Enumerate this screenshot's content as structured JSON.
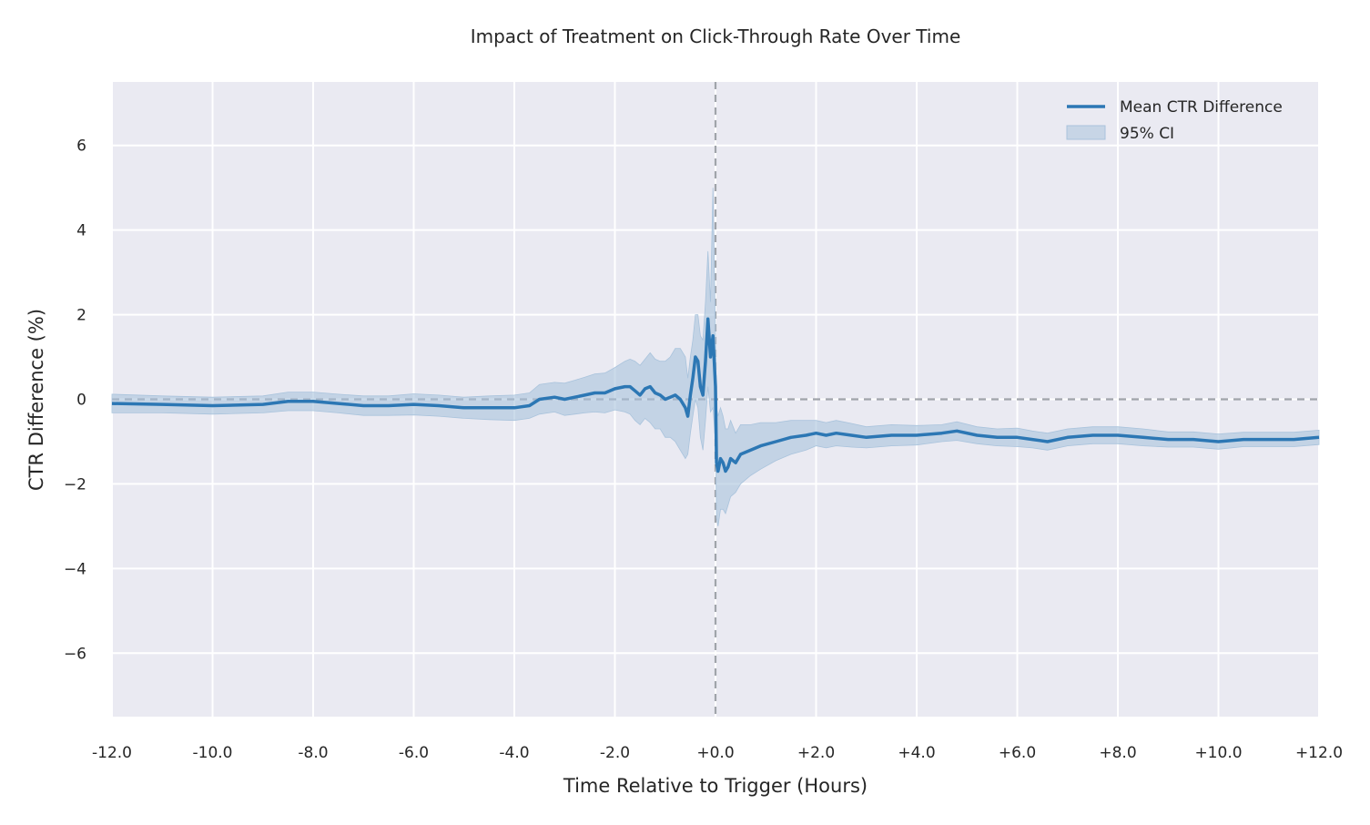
{
  "chart_data": {
    "type": "line",
    "title": "Impact of Treatment on Click-Through Rate Over Time",
    "xlabel": "Time Relative to Trigger (Hours)",
    "ylabel": "CTR Difference (%)",
    "xlim": [
      -12,
      12
    ],
    "ylim": [
      -7.5,
      7.5
    ],
    "x_ticks": [
      -12,
      -10,
      -8,
      -6,
      -4,
      -2,
      0,
      2,
      4,
      6,
      8,
      10,
      12
    ],
    "x_tick_labels": [
      "-12.0",
      "-10.0",
      "-8.0",
      "-6.0",
      "-4.0",
      "-2.0",
      "+0.0",
      "+2.0",
      "+4.0",
      "+6.0",
      "+8.0",
      "+10.0",
      "+12.0"
    ],
    "y_ticks": [
      -6,
      -4,
      -2,
      0,
      2,
      4,
      6
    ],
    "y_tick_labels": [
      "−6",
      "−4",
      "−2",
      "0",
      "2",
      "4",
      "6"
    ],
    "grid": true,
    "legend_position": "top-right",
    "reference_lines": [
      {
        "orientation": "horizontal",
        "value": 0,
        "style": "dashed",
        "color": "#a0a4aa"
      },
      {
        "orientation": "vertical",
        "value": 0,
        "style": "dashed",
        "color": "#a0a4aa"
      }
    ],
    "colors": {
      "line": "#2c77b4",
      "band": "#a9c3dc",
      "background": "#eaeaf2",
      "grid": "#ffffff"
    },
    "series": [
      {
        "name": "Mean CTR Difference",
        "x": [
          -12,
          -11,
          -10,
          -9,
          -8.5,
          -8,
          -7.5,
          -7,
          -6.5,
          -6,
          -5.5,
          -5,
          -4.5,
          -4,
          -3.7,
          -3.5,
          -3.2,
          -3,
          -2.8,
          -2.6,
          -2.4,
          -2.2,
          -2.0,
          -1.8,
          -1.7,
          -1.6,
          -1.5,
          -1.4,
          -1.3,
          -1.2,
          -1.1,
          -1.0,
          -0.9,
          -0.8,
          -0.7,
          -0.6,
          -0.55,
          -0.5,
          -0.45,
          -0.4,
          -0.35,
          -0.3,
          -0.25,
          -0.2,
          -0.15,
          -0.1,
          -0.05,
          0.0,
          0.02,
          0.05,
          0.1,
          0.15,
          0.2,
          0.25,
          0.3,
          0.4,
          0.5,
          0.7,
          0.9,
          1.2,
          1.5,
          1.8,
          2.0,
          2.2,
          2.4,
          2.7,
          3.0,
          3.5,
          4.0,
          4.5,
          4.8,
          5.2,
          5.6,
          6.0,
          6.3,
          6.6,
          7.0,
          7.5,
          8.0,
          8.5,
          9.0,
          9.5,
          10.0,
          10.5,
          11.0,
          11.5,
          12.0
        ],
        "y": [
          -0.1,
          -0.12,
          -0.15,
          -0.12,
          -0.05,
          -0.05,
          -0.1,
          -0.15,
          -0.15,
          -0.12,
          -0.15,
          -0.2,
          -0.2,
          -0.2,
          -0.15,
          0.0,
          0.05,
          0.0,
          0.05,
          0.1,
          0.15,
          0.15,
          0.25,
          0.3,
          0.3,
          0.2,
          0.1,
          0.25,
          0.3,
          0.15,
          0.1,
          0.0,
          0.05,
          0.1,
          0.0,
          -0.2,
          -0.4,
          0.1,
          0.5,
          1.0,
          0.9,
          0.3,
          0.1,
          0.9,
          1.9,
          1.0,
          1.5,
          0.3,
          -1.5,
          -1.7,
          -1.4,
          -1.5,
          -1.7,
          -1.6,
          -1.4,
          -1.5,
          -1.3,
          -1.2,
          -1.1,
          -1.0,
          -0.9,
          -0.85,
          -0.8,
          -0.85,
          -0.8,
          -0.85,
          -0.9,
          -0.85,
          -0.85,
          -0.8,
          -0.75,
          -0.85,
          -0.9,
          -0.9,
          -0.95,
          -1.0,
          -0.9,
          -0.85,
          -0.85,
          -0.9,
          -0.95,
          -0.95,
          -1.0,
          -0.95,
          -0.95,
          -0.95,
          -0.9
        ]
      },
      {
        "name": "95% CI",
        "x": [
          -12,
          -11,
          -10,
          -9,
          -8.5,
          -8,
          -7.5,
          -7,
          -6.5,
          -6,
          -5.5,
          -5,
          -4.5,
          -4,
          -3.7,
          -3.5,
          -3.2,
          -3,
          -2.8,
          -2.6,
          -2.4,
          -2.2,
          -2.0,
          -1.8,
          -1.7,
          -1.6,
          -1.5,
          -1.4,
          -1.3,
          -1.2,
          -1.1,
          -1.0,
          -0.9,
          -0.8,
          -0.7,
          -0.6,
          -0.55,
          -0.5,
          -0.45,
          -0.4,
          -0.35,
          -0.3,
          -0.25,
          -0.2,
          -0.15,
          -0.1,
          -0.05,
          0.0,
          0.02,
          0.05,
          0.1,
          0.15,
          0.2,
          0.25,
          0.3,
          0.4,
          0.5,
          0.7,
          0.9,
          1.2,
          1.5,
          1.8,
          2.0,
          2.2,
          2.4,
          2.7,
          3.0,
          3.5,
          4.0,
          4.5,
          4.8,
          5.2,
          5.6,
          6.0,
          6.3,
          6.6,
          7.0,
          7.5,
          8.0,
          8.5,
          9.0,
          9.5,
          10.0,
          10.5,
          11.0,
          11.5,
          12.0
        ],
        "lower": [
          -0.32,
          -0.32,
          -0.35,
          -0.32,
          -0.27,
          -0.27,
          -0.32,
          -0.38,
          -0.38,
          -0.37,
          -0.4,
          -0.45,
          -0.48,
          -0.5,
          -0.45,
          -0.35,
          -0.3,
          -0.38,
          -0.35,
          -0.32,
          -0.3,
          -0.32,
          -0.25,
          -0.3,
          -0.35,
          -0.5,
          -0.6,
          -0.45,
          -0.55,
          -0.7,
          -0.7,
          -0.9,
          -0.9,
          -1.0,
          -1.2,
          -1.4,
          -1.3,
          -0.8,
          -0.4,
          0.0,
          -0.2,
          -0.9,
          -1.2,
          -0.5,
          0.3,
          -0.3,
          -0.2,
          -1.0,
          -2.8,
          -3.0,
          -2.6,
          -2.6,
          -2.7,
          -2.5,
          -2.3,
          -2.2,
          -2.0,
          -1.8,
          -1.65,
          -1.45,
          -1.3,
          -1.2,
          -1.1,
          -1.15,
          -1.1,
          -1.13,
          -1.15,
          -1.1,
          -1.08,
          -1.0,
          -0.97,
          -1.05,
          -1.1,
          -1.12,
          -1.15,
          -1.2,
          -1.1,
          -1.05,
          -1.05,
          -1.1,
          -1.13,
          -1.13,
          -1.18,
          -1.12,
          -1.12,
          -1.12,
          -1.07
        ],
        "upper": [
          0.12,
          0.08,
          0.05,
          0.08,
          0.17,
          0.17,
          0.12,
          0.08,
          0.08,
          0.13,
          0.1,
          0.05,
          0.08,
          0.1,
          0.15,
          0.35,
          0.4,
          0.38,
          0.45,
          0.52,
          0.6,
          0.62,
          0.75,
          0.9,
          0.95,
          0.9,
          0.8,
          0.95,
          1.1,
          0.95,
          0.9,
          0.9,
          1.0,
          1.2,
          1.2,
          1.0,
          0.5,
          1.0,
          1.4,
          2.0,
          2.0,
          1.5,
          1.4,
          2.3,
          3.5,
          2.3,
          5.0,
          1.6,
          -0.2,
          -0.4,
          -0.2,
          -0.4,
          -0.7,
          -0.7,
          -0.5,
          -0.8,
          -0.6,
          -0.6,
          -0.55,
          -0.55,
          -0.5,
          -0.5,
          -0.5,
          -0.55,
          -0.5,
          -0.57,
          -0.65,
          -0.6,
          -0.62,
          -0.6,
          -0.53,
          -0.65,
          -0.7,
          -0.68,
          -0.75,
          -0.8,
          -0.7,
          -0.65,
          -0.65,
          -0.7,
          -0.77,
          -0.77,
          -0.82,
          -0.78,
          -0.78,
          -0.78,
          -0.73
        ]
      }
    ]
  }
}
